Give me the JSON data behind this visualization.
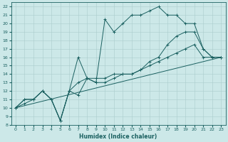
{
  "xlabel": "Humidex (Indice chaleur)",
  "xlim": [
    -0.5,
    23.5
  ],
  "ylim": [
    8,
    22.5
  ],
  "yticks": [
    8,
    9,
    10,
    11,
    12,
    13,
    14,
    15,
    16,
    17,
    18,
    19,
    20,
    21,
    22
  ],
  "xticks": [
    0,
    1,
    2,
    3,
    4,
    5,
    6,
    7,
    8,
    9,
    10,
    11,
    12,
    13,
    14,
    15,
    16,
    17,
    18,
    19,
    20,
    21,
    22,
    23
  ],
  "bg_color": "#cce8e8",
  "grid_color": "#aacccc",
  "line_color": "#1a6060",
  "lines": [
    {
      "x": [
        0,
        1,
        2,
        3,
        4,
        5,
        6,
        7,
        8,
        9,
        10,
        11,
        12,
        13,
        14,
        15,
        16,
        17,
        18,
        19,
        20,
        21,
        22,
        23
      ],
      "y": [
        10,
        11,
        11,
        12,
        11,
        8.5,
        12,
        11.5,
        13.5,
        13,
        20.5,
        19,
        20,
        21,
        21,
        21.5,
        22,
        21,
        21,
        20,
        20,
        17,
        16,
        16
      ]
    },
    {
      "x": [
        0,
        1,
        2,
        3,
        4,
        5,
        6,
        7,
        8,
        9,
        10,
        11,
        12,
        13,
        14,
        15,
        16,
        17,
        18,
        19,
        20,
        21,
        22,
        23
      ],
      "y": [
        10,
        11,
        11,
        12,
        11,
        8.5,
        12,
        16,
        13.5,
        13.5,
        13.5,
        14,
        14,
        14,
        14.5,
        15.5,
        16,
        17.5,
        18.5,
        19,
        19,
        17,
        16,
        16
      ]
    },
    {
      "x": [
        0,
        1,
        2,
        3,
        4,
        5,
        6,
        7,
        8,
        9,
        10,
        11,
        12,
        13,
        14,
        15,
        16,
        17,
        18,
        19,
        20,
        21,
        22,
        23
      ],
      "y": [
        10,
        10.5,
        11,
        12,
        11,
        8.5,
        12,
        13,
        13.5,
        13,
        13,
        13.5,
        14,
        14,
        14.5,
        15,
        15.5,
        16,
        16.5,
        17,
        17.5,
        16,
        16,
        16
      ]
    },
    {
      "x": [
        0,
        23
      ],
      "y": [
        10,
        16
      ]
    }
  ],
  "figsize": [
    3.2,
    2.0
  ],
  "dpi": 100
}
